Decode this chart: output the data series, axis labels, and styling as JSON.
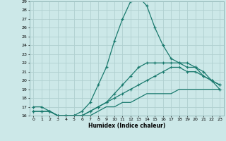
{
  "xlabel": "Humidex (Indice chaleur)",
  "background_color": "#cce8e8",
  "grid_color": "#b0d0d0",
  "line_color": "#1a7a6e",
  "xlim": [
    -0.5,
    23.5
  ],
  "ylim": [
    16,
    29
  ],
  "xticks": [
    0,
    1,
    2,
    3,
    4,
    5,
    6,
    7,
    8,
    9,
    10,
    11,
    12,
    13,
    14,
    15,
    16,
    17,
    18,
    19,
    20,
    21,
    22,
    23
  ],
  "yticks": [
    16,
    17,
    18,
    19,
    20,
    21,
    22,
    23,
    24,
    25,
    26,
    27,
    28,
    29
  ],
  "line1_x": [
    0,
    1,
    2,
    3,
    4,
    5,
    6,
    7,
    8,
    9,
    10,
    11,
    12,
    13,
    14,
    15,
    16,
    17,
    18,
    19,
    20,
    21,
    22,
    23
  ],
  "line1_y": [
    17.0,
    17.0,
    16.5,
    16.0,
    16.0,
    16.0,
    16.5,
    17.5,
    19.5,
    21.5,
    24.5,
    27.0,
    29.0,
    29.5,
    28.5,
    26.0,
    24.0,
    22.5,
    22.0,
    21.5,
    21.5,
    21.0,
    20.0,
    19.0
  ],
  "line2_x": [
    0,
    1,
    2,
    3,
    4,
    5,
    6,
    7,
    8,
    9,
    10,
    11,
    12,
    13,
    14,
    15,
    16,
    17,
    18,
    19,
    20,
    21,
    22,
    23
  ],
  "line2_y": [
    16.5,
    16.5,
    16.5,
    16.0,
    16.0,
    16.0,
    16.0,
    16.5,
    17.0,
    17.5,
    18.0,
    18.5,
    19.0,
    19.5,
    20.0,
    20.5,
    21.0,
    21.5,
    21.5,
    21.0,
    21.0,
    20.5,
    20.0,
    19.5
  ],
  "line3_x": [
    0,
    1,
    2,
    3,
    4,
    5,
    6,
    7,
    8,
    9,
    10,
    11,
    12,
    13,
    14,
    15,
    16,
    17,
    18,
    19,
    20,
    21,
    22,
    23
  ],
  "line3_y": [
    16.5,
    16.5,
    16.5,
    16.0,
    16.0,
    16.0,
    16.0,
    16.0,
    16.5,
    17.0,
    17.0,
    17.5,
    17.5,
    18.0,
    18.5,
    18.5,
    18.5,
    18.5,
    19.0,
    19.0,
    19.0,
    19.0,
    19.0,
    19.0
  ],
  "line4_x": [
    0,
    1,
    2,
    3,
    4,
    5,
    6,
    7,
    8,
    9,
    10,
    11,
    12,
    13,
    14,
    15,
    16,
    17,
    18,
    19,
    20,
    21,
    22,
    23
  ],
  "line4_y": [
    16.5,
    16.5,
    16.5,
    16.0,
    16.0,
    16.0,
    16.0,
    16.5,
    17.0,
    17.5,
    18.5,
    19.5,
    20.5,
    21.5,
    22.0,
    22.0,
    22.0,
    22.0,
    22.0,
    22.0,
    21.5,
    20.5,
    20.0,
    19.5
  ]
}
